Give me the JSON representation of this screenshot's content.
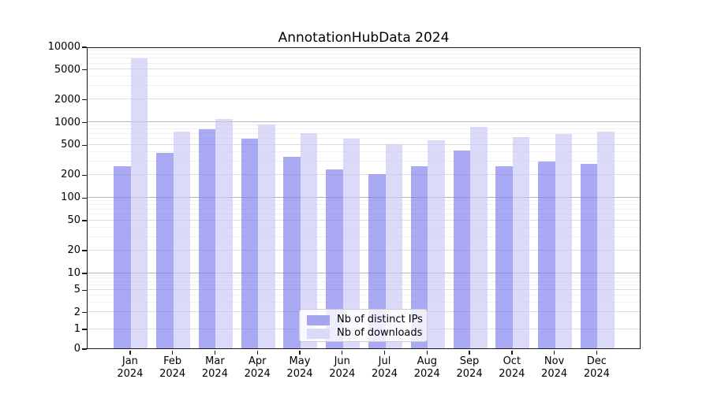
{
  "title": "AnnotationHubData 2024",
  "legend": {
    "items": [
      {
        "label": "Nb of distinct IPs",
        "color": "#a4a4f1"
      },
      {
        "label": "Nb of downloads",
        "color": "#d9d9f8"
      }
    ],
    "position": "lower center"
  },
  "chart_data": {
    "type": "bar",
    "title": "AnnotationHubData 2024",
    "categories": [
      "Jan 2024",
      "Feb 2024",
      "Mar 2024",
      "Apr 2024",
      "May 2024",
      "Jun 2024",
      "Jul 2024",
      "Aug 2024",
      "Sep 2024",
      "Oct 2024",
      "Nov 2024",
      "Dec 2024"
    ],
    "series": [
      {
        "name": "Nb of distinct IPs",
        "color": "rgba(125,125,238,0.66)",
        "values": [
          260,
          390,
          800,
          600,
          340,
          235,
          205,
          255,
          420,
          255,
          300,
          275
        ]
      },
      {
        "name": "Nb of downloads",
        "color": "rgba(200,200,246,0.66)",
        "values": [
          7000,
          735,
          1080,
          920,
          715,
          605,
          505,
          575,
          855,
          630,
          690,
          735
        ]
      }
    ],
    "yscale": "symlog",
    "ylim": [
      0,
      10000
    ],
    "yticks": [
      0,
      1,
      2,
      5,
      10,
      20,
      50,
      100,
      200,
      500,
      1000,
      2000,
      5000,
      10000
    ],
    "major_grid_values": [
      10,
      100,
      1000,
      10000
    ],
    "xlabel": "",
    "ylabel": "",
    "grid": true,
    "legend_position": "lower-center"
  }
}
